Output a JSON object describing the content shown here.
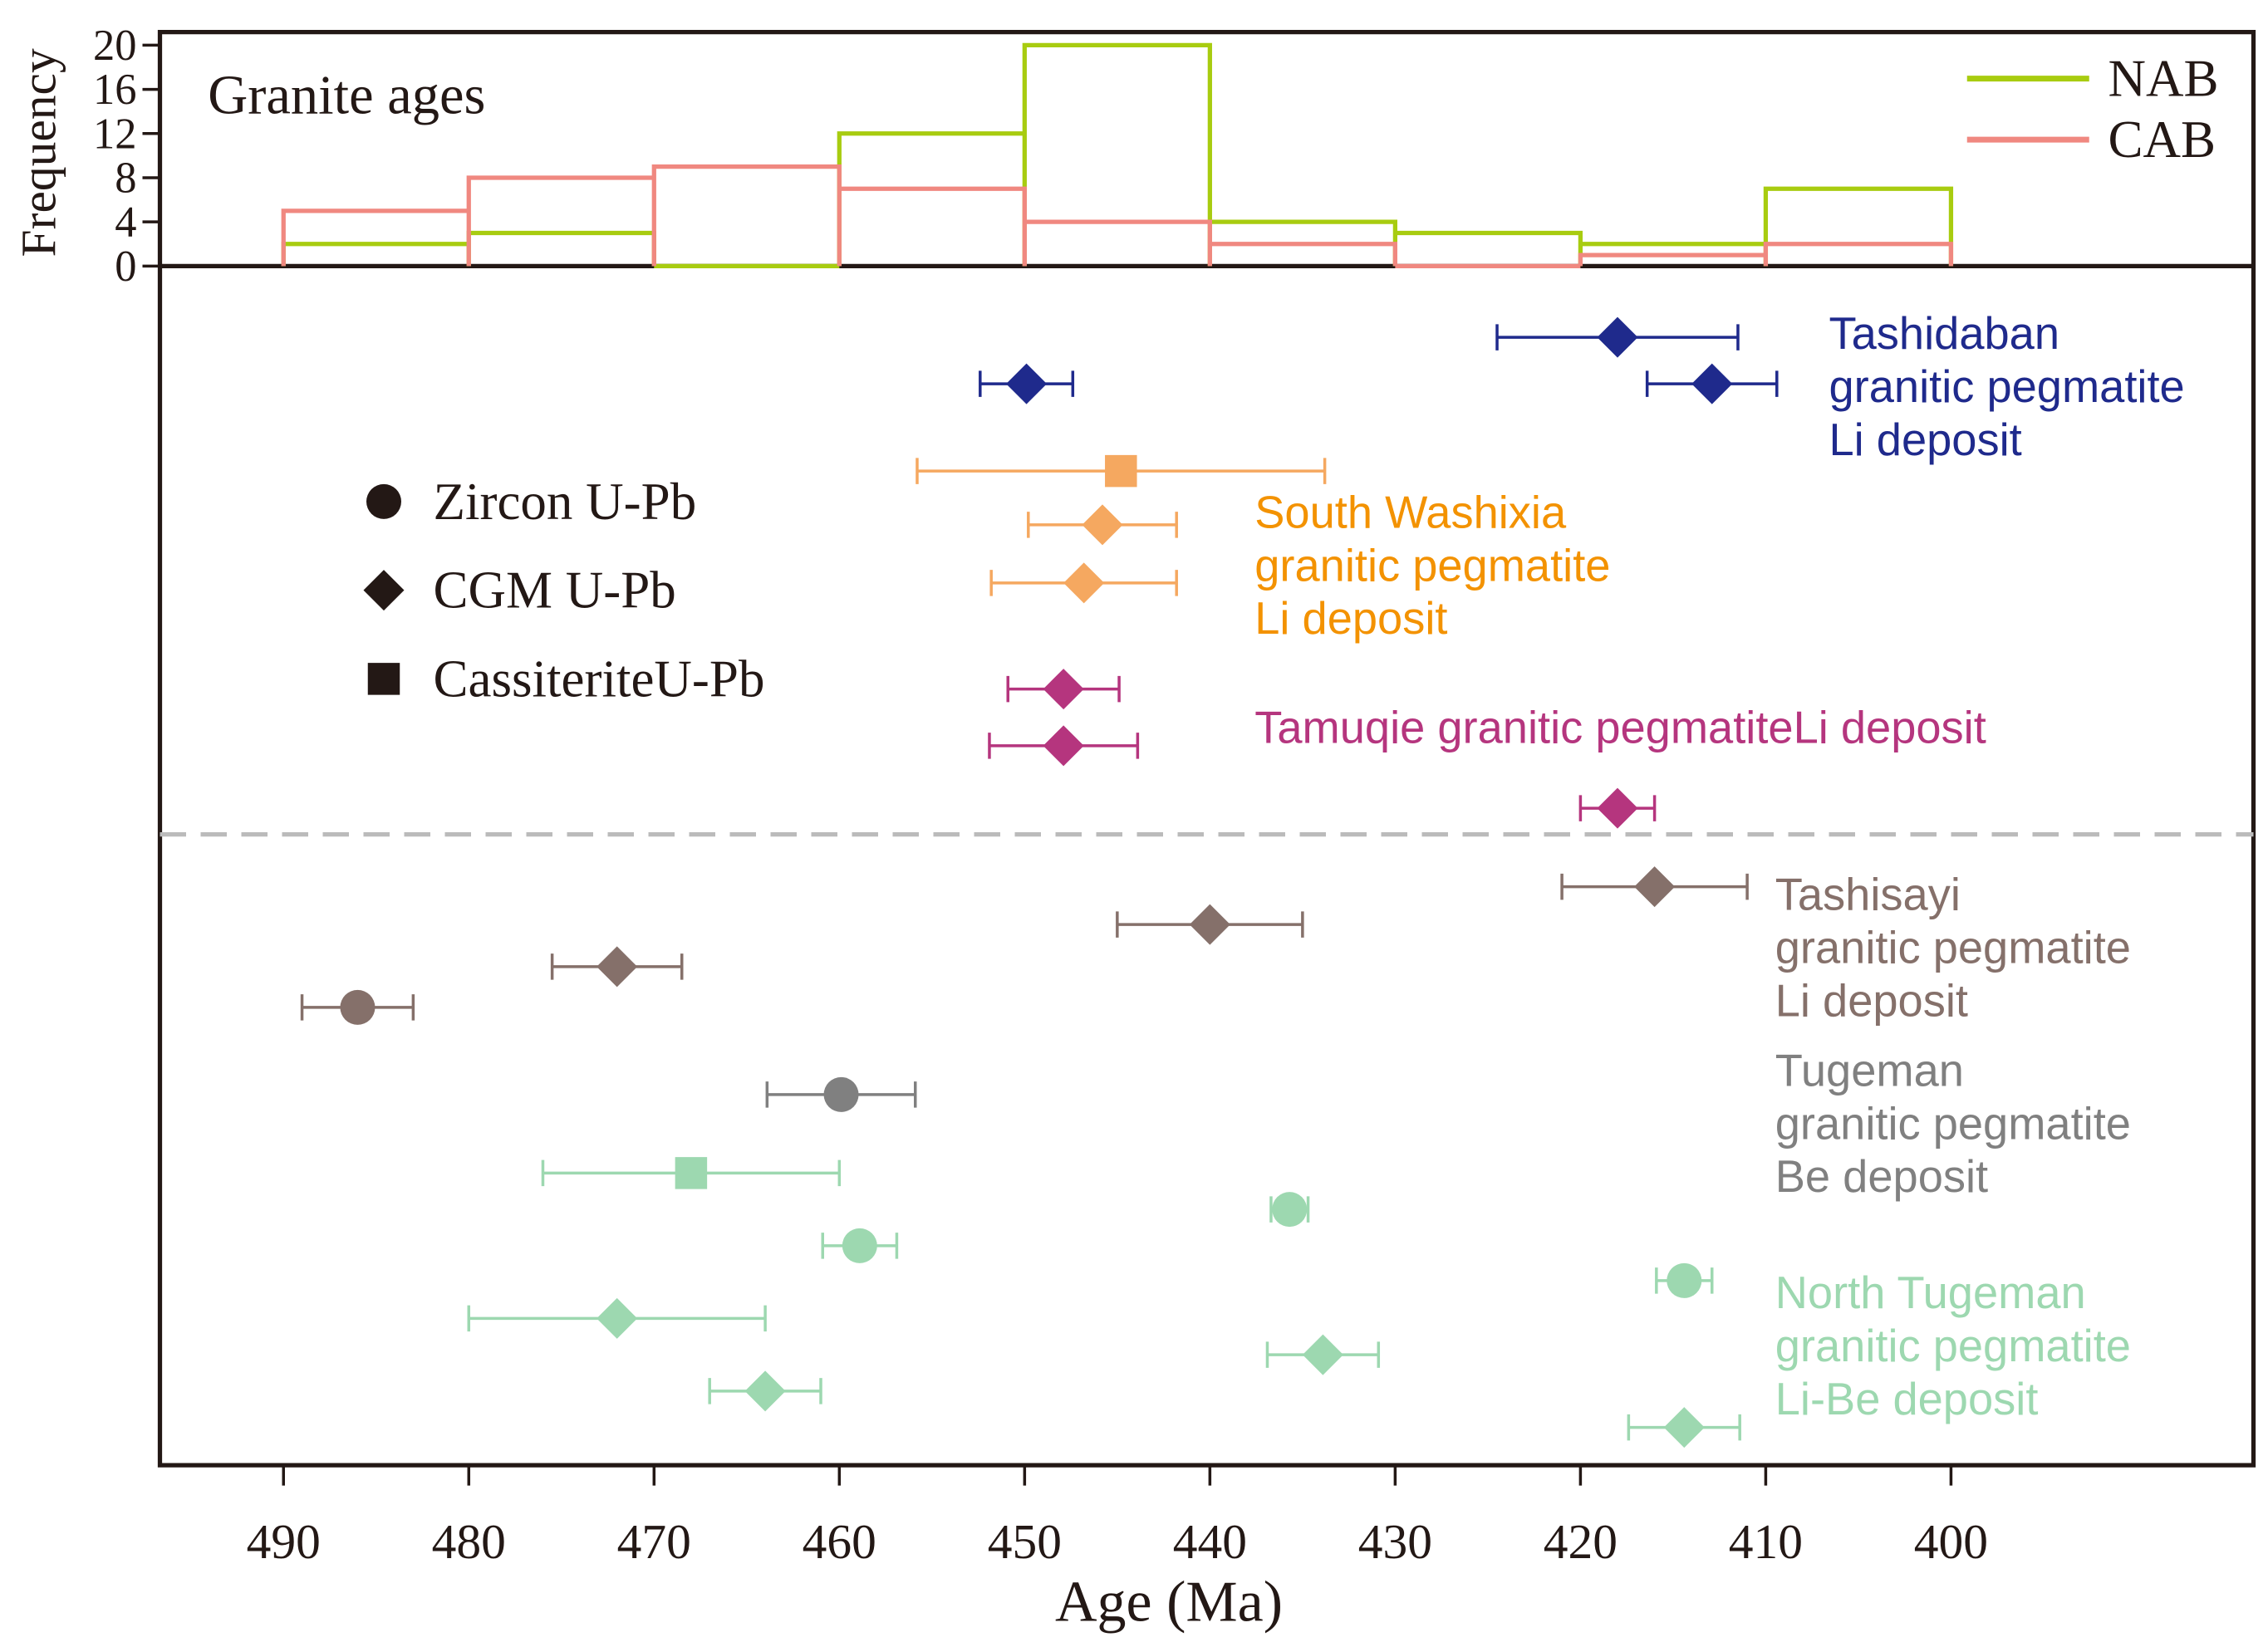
{
  "chart_data": [
    {
      "type": "histogram",
      "title": "Granite ages",
      "ylabel": "Frequency",
      "yticks": [
        0,
        4,
        8,
        12,
        16,
        20
      ],
      "ylim": [
        0,
        20
      ],
      "bins": [
        [
          490,
          480
        ],
        [
          480,
          470
        ],
        [
          470,
          460
        ],
        [
          460,
          450
        ],
        [
          450,
          440
        ],
        [
          440,
          430
        ],
        [
          430,
          420
        ],
        [
          420,
          410
        ],
        [
          410,
          400
        ]
      ],
      "series": [
        {
          "name": "NAB",
          "color": "#a8cc10",
          "values": [
            2,
            3,
            0,
            12,
            20,
            4,
            3,
            2,
            7
          ]
        },
        {
          "name": "CAB",
          "color": "#f08880",
          "values": [
            5,
            8,
            9,
            7,
            4,
            2,
            0,
            1,
            2
          ]
        }
      ],
      "legend": "top-right"
    },
    {
      "type": "scatter",
      "xlabel": "Age (Ma)",
      "xlim": [
        496.5,
        383.5
      ],
      "xticks": [
        490,
        480,
        470,
        460,
        450,
        440,
        430,
        420,
        410,
        400
      ],
      "marker_legend": [
        {
          "shape": "circle",
          "label": "Zircon U-Pb"
        },
        {
          "shape": "diamond",
          "label": "CGM U-Pb"
        },
        {
          "shape": "square",
          "label": "CassiteriteU-Pb"
        }
      ],
      "groups": [
        {
          "name": "Tashidaban granitic pegmatite Li deposit",
          "label_lines": [
            "Tashidaban",
            "granitic pegmatite",
            "Li deposit"
          ],
          "color": "#1f2a8c",
          "points": [
            {
              "row": 0,
              "shape": "diamond",
              "age": 418.0,
              "err": 6.5
            },
            {
              "row": 1,
              "shape": "diamond",
              "age": 449.9,
              "err": 2.5
            },
            {
              "row": 1,
              "shape": "diamond",
              "age": 412.9,
              "err": 3.5
            }
          ]
        },
        {
          "name": "South Washixia granitic pegmatite Li deposit",
          "label_lines": [
            "South  Washixia",
            "granitic pegmatite",
            "Li deposit"
          ],
          "color": "#f5a860",
          "text_color": "#f39200",
          "points": [
            {
              "row": 2,
              "shape": "square",
              "age": 444.8,
              "err": 11
            },
            {
              "row": 3,
              "shape": "diamond",
              "age": 445.8,
              "err": 4
            },
            {
              "row": 4,
              "shape": "diamond",
              "age": 446.8,
              "err": 5
            }
          ]
        },
        {
          "name": "Tamuqie granitic pegmatite Li deposit",
          "label_lines": [
            "Tamuqie  granitic pegmatiteLi  deposit"
          ],
          "color": "#b5357e",
          "points": [
            {
              "row": 5,
              "shape": "diamond",
              "age": 447.9,
              "err": 3
            },
            {
              "row": 6,
              "shape": "diamond",
              "age": 447.9,
              "err": 4
            },
            {
              "row": 7,
              "shape": "diamond",
              "age": 418.0,
              "err": 2
            }
          ]
        },
        {
          "name": "Tashisayi granitic pegmatite Li deposit",
          "label_lines": [
            "Tashisayi",
            "granitic pegmatite",
            "Li deposit"
          ],
          "color": "#85706a",
          "points": [
            {
              "row": 8,
              "shape": "diamond",
              "age": 416.0,
              "err": 5
            },
            {
              "row": 9,
              "shape": "diamond",
              "age": 440.0,
              "err": 5
            },
            {
              "row": 10,
              "shape": "diamond",
              "age": 472.0,
              "err": 3.5
            },
            {
              "row": 11,
              "shape": "circle",
              "age": 486.0,
              "err": 3
            }
          ]
        },
        {
          "name": "Tugeman granitic pegmatite Be deposit",
          "label_lines": [
            "Tugeman",
            "granitic pegmatite",
            "Be deposit"
          ],
          "color": "#808080",
          "points": [
            {
              "row": 12,
              "shape": "circle",
              "age": 459.9,
              "err": 4
            }
          ]
        },
        {
          "name": "North Tugeman granitic pegmatite Li-Be deposit",
          "label_lines": [
            "North  Tugeman",
            "granitic pegmatite",
            "Li-Be  deposit"
          ],
          "color": "#9dd8b0",
          "points": [
            {
              "row": 13,
              "shape": "square",
              "age": 468.0,
              "err": 8
            },
            {
              "row": 14,
              "shape": "circle",
              "age": 435.7,
              "err": 1
            },
            {
              "row": 15,
              "shape": "circle",
              "age": 458.9,
              "err": 2
            },
            {
              "row": 16,
              "shape": "circle",
              "age": 414.4,
              "err": 1.5
            },
            {
              "row": 17,
              "shape": "diamond",
              "age": 472.0,
              "err": 8
            },
            {
              "row": 18,
              "shape": "diamond",
              "age": 433.9,
              "err": 3
            },
            {
              "row": 19,
              "shape": "diamond",
              "age": 464.0,
              "err": 3
            },
            {
              "row": 20,
              "shape": "diamond",
              "age": 414.4,
              "err": 3
            }
          ]
        }
      ]
    }
  ]
}
